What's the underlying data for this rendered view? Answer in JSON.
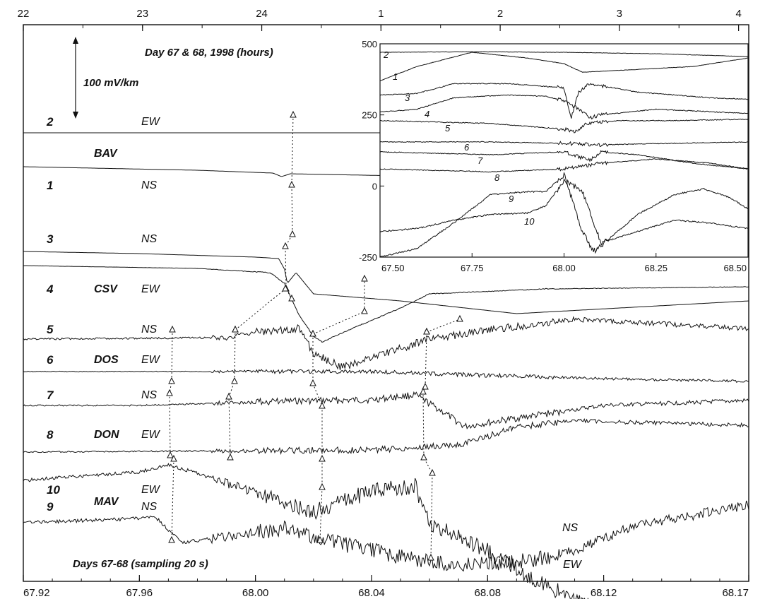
{
  "chart_data": [
    {
      "type": "line",
      "title": "Day 67 & 68, 1998 (hours)",
      "subtitle": "Days 67-68 (sampling 20 s)",
      "scale_bar_label": "100 mV/km",
      "xlim": [
        67.92,
        68.17
      ],
      "x_ticks": [
        "67.92",
        "67.96",
        "68.00",
        "68.04",
        "68.08",
        "68.12",
        "68.17"
      ],
      "x_tick_values": [
        67.92,
        67.96,
        68.0,
        68.04,
        68.08,
        68.12,
        68.17
      ],
      "top_ticks": [
        "22",
        "23",
        "24",
        "1",
        "2",
        "3",
        "4"
      ],
      "top_tick_values": [
        22,
        23,
        24,
        25,
        26,
        27,
        28
      ],
      "grid": false,
      "stations": [
        "BAV",
        "CSV",
        "DOS",
        "DON",
        "MAV"
      ],
      "series": [
        {
          "channel": "2",
          "component": "EW",
          "station": "BAV",
          "color": "#111111",
          "x": [
            67.92,
            68.0,
            68.05,
            68.17
          ],
          "y": [
            0,
            0,
            0,
            -0.5
          ]
        },
        {
          "channel": "1",
          "component": "NS",
          "station": "BAV",
          "color": "#111111",
          "x": [
            67.92,
            67.98,
            68.006,
            68.009,
            68.012,
            68.05,
            68.17
          ],
          "y": [
            0,
            -5,
            -9,
            -14,
            -10,
            -13,
            -15
          ]
        },
        {
          "channel": "3",
          "component": "NS",
          "station": "CSV",
          "color": "#111111",
          "x": [
            67.92,
            67.96,
            68.0,
            68.008,
            68.01,
            68.011,
            68.014,
            68.02,
            68.05,
            68.09,
            68.17
          ],
          "y": [
            0,
            -3,
            -8,
            -10,
            -25,
            -45,
            -30,
            -60,
            -70,
            -88,
            -70
          ]
        },
        {
          "channel": "4",
          "component": "EW",
          "station": "CSV",
          "color": "#111111",
          "x": [
            67.92,
            67.98,
            68.005,
            68.01,
            68.015,
            68.02,
            68.023,
            68.03,
            68.05,
            68.06,
            68.1,
            68.17
          ],
          "y": [
            0,
            -4,
            -10,
            -25,
            -70,
            -100,
            -108,
            -95,
            -60,
            -40,
            -33,
            -30
          ]
        },
        {
          "channel": "5",
          "component": "NS",
          "station": "DOS",
          "color": "#111111",
          "x": [
            67.92,
            67.99,
            68.0,
            68.015,
            68.02,
            68.03,
            68.045,
            68.06,
            68.09,
            68.11,
            68.17
          ],
          "y": [
            0,
            2,
            10,
            15,
            -20,
            -40,
            -20,
            0,
            18,
            28,
            15
          ]
        },
        {
          "channel": "6",
          "component": "EW",
          "station": "DOS",
          "color": "#111111",
          "x": [
            67.92,
            68.0,
            68.04,
            68.06,
            68.12,
            68.17
          ],
          "y": [
            0,
            0,
            0,
            -3,
            -10,
            -14
          ]
        },
        {
          "channel": "7",
          "component": "NS",
          "station": "DON",
          "color": "#111111",
          "x": [
            67.92,
            67.96,
            68.0,
            68.04,
            68.055,
            68.065,
            68.072,
            68.09,
            68.12,
            68.17
          ],
          "y": [
            0,
            0,
            5,
            8,
            15,
            -10,
            -30,
            -18,
            0,
            7
          ]
        },
        {
          "channel": "8",
          "component": "EW",
          "station": "DON",
          "color": "#111111",
          "x": [
            67.92,
            68.0,
            68.04,
            68.07,
            68.09,
            68.11,
            68.13,
            68.17
          ],
          "y": [
            0,
            2,
            3,
            10,
            35,
            45,
            42,
            38
          ]
        },
        {
          "channel": "10",
          "component": "EW",
          "station": "MAV",
          "color": "#111111",
          "x": [
            67.92,
            67.96,
            67.97,
            67.98,
            68.0,
            68.02,
            68.04,
            68.055,
            68.06,
            68.08,
            68.1,
            68.115,
            68.13
          ],
          "y": [
            0,
            12,
            22,
            10,
            -18,
            -45,
            -15,
            -8,
            -60,
            -100,
            -150,
            -175,
            -190
          ]
        },
        {
          "channel": "9",
          "component": "NS",
          "station": "MAV",
          "color": "#111111",
          "x": [
            67.92,
            67.96,
            67.965,
            67.97,
            67.975,
            67.99,
            68.01,
            68.03,
            68.05,
            68.07,
            68.09,
            68.1,
            68.11,
            68.13,
            68.17
          ],
          "y": [
            0,
            6,
            10,
            -10,
            -28,
            -20,
            -8,
            -30,
            -48,
            -60,
            -55,
            -50,
            -40,
            -5,
            25
          ]
        }
      ],
      "trace_labels": [
        {
          "channel": "9",
          "text": "NS"
        },
        {
          "channel": "10",
          "text": "EW"
        }
      ]
    },
    {
      "type": "line",
      "title": "",
      "xlim": [
        67.5,
        68.5
      ],
      "ylim": [
        -250,
        500
      ],
      "x_ticks": [
        "67.50",
        "67.75",
        "68.00",
        "68.25",
        "68.50"
      ],
      "x_tick_values": [
        67.5,
        67.75,
        68.0,
        68.25,
        68.5
      ],
      "y_ticks": [
        "500",
        "250",
        "0",
        "-250"
      ],
      "y_tick_values": [
        500,
        250,
        0,
        -250
      ],
      "grid": false,
      "series": [
        {
          "channel": "2",
          "x": [
            67.5,
            67.75,
            68.0,
            68.25,
            68.5
          ],
          "y": [
            470,
            472,
            470,
            465,
            455
          ]
        },
        {
          "channel": "1",
          "x": [
            67.5,
            67.6,
            67.75,
            67.9,
            68.0,
            68.05,
            68.2,
            68.35,
            68.5
          ],
          "y": [
            370,
            420,
            470,
            450,
            430,
            400,
            410,
            420,
            450
          ]
        },
        {
          "channel": "3",
          "x": [
            67.5,
            67.6,
            67.7,
            67.85,
            68.0,
            68.02,
            68.04,
            68.07,
            68.2,
            68.4,
            68.5
          ],
          "y": [
            320,
            325,
            360,
            360,
            345,
            240,
            330,
            360,
            330,
            310,
            305
          ]
        },
        {
          "channel": "4",
          "x": [
            67.5,
            67.6,
            67.7,
            67.85,
            67.95,
            68.0,
            68.04,
            68.07,
            68.1,
            68.25,
            68.5
          ],
          "y": [
            260,
            270,
            310,
            320,
            315,
            300,
            270,
            240,
            250,
            270,
            255
          ]
        },
        {
          "channel": "5",
          "x": [
            67.5,
            67.8,
            68.0,
            68.03,
            68.06,
            68.15,
            68.3,
            68.5
          ],
          "y": [
            230,
            220,
            200,
            190,
            220,
            230,
            230,
            235
          ]
        },
        {
          "channel": "6",
          "x": [
            67.5,
            67.8,
            68.0,
            68.1,
            68.3,
            68.5
          ],
          "y": [
            155,
            155,
            150,
            145,
            150,
            155
          ]
        },
        {
          "channel": "7",
          "x": [
            67.5,
            67.8,
            68.0,
            68.07,
            68.1,
            68.2,
            68.35,
            68.5
          ],
          "y": [
            120,
            110,
            120,
            90,
            120,
            110,
            80,
            60
          ]
        },
        {
          "channel": "8",
          "x": [
            67.5,
            67.8,
            68.0,
            68.1,
            68.25,
            68.4,
            68.5
          ],
          "y": [
            60,
            50,
            60,
            80,
            95,
            80,
            60
          ]
        },
        {
          "channel": "9",
          "x": [
            67.5,
            67.6,
            67.7,
            67.8,
            67.9,
            67.95,
            68.0,
            68.05,
            68.1,
            68.2,
            68.3,
            68.4,
            68.5
          ],
          "y": [
            -160,
            -150,
            -120,
            -100,
            -95,
            -70,
            20,
            -20,
            -200,
            -160,
            -120,
            -130,
            -150
          ]
        },
        {
          "channel": "10",
          "x": [
            67.5,
            67.6,
            67.7,
            67.8,
            67.9,
            67.95,
            68.0,
            68.05,
            68.08,
            68.1,
            68.2,
            68.3,
            68.38,
            68.45,
            68.5
          ],
          "y": [
            -250,
            -220,
            -130,
            -30,
            -20,
            -20,
            40,
            -160,
            -230,
            -210,
            -100,
            -30,
            -10,
            -40,
            -80
          ]
        }
      ]
    }
  ]
}
